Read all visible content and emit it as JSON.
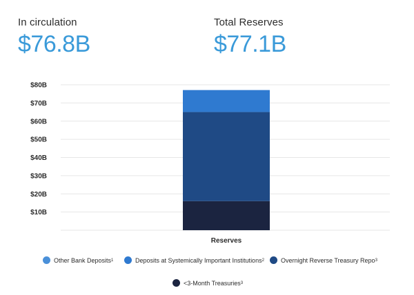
{
  "stats": {
    "circulation": {
      "label": "In circulation",
      "value": "$76.8B"
    },
    "reserves": {
      "label": "Total Reserves",
      "value": "$77.1B"
    }
  },
  "colors": {
    "stat_value": "#3a9ad9",
    "other_bank_deposits": "#4a90d9",
    "gsib_deposits": "#2f7ad0",
    "overnight_repo": "#1f4a85",
    "treasuries": "#1b2440"
  },
  "chart_data": {
    "type": "bar",
    "stacked": true,
    "categories": [
      "Reserves"
    ],
    "ylim": [
      0,
      80
    ],
    "yticks": [
      10,
      20,
      30,
      40,
      50,
      60,
      70,
      80
    ],
    "ytick_labels": [
      "$10B",
      "$20B",
      "$30B",
      "$40B",
      "$50B",
      "$60B",
      "$70B",
      "$80B"
    ],
    "grid": true,
    "legend_position": "bottom",
    "series": [
      {
        "name": "<3-Month Treasuries",
        "footnote": "3",
        "values": [
          16
        ],
        "color": "#1b2440"
      },
      {
        "name": "Overnight Reverse Treasury Repo",
        "footnote": "3",
        "values": [
          49
        ],
        "color": "#1f4a85"
      },
      {
        "name": "Deposits at Systemically Important Institutions",
        "footnote": "2",
        "values": [
          12.1
        ],
        "color": "#2f7ad0"
      },
      {
        "name": "Other Bank Deposits",
        "footnote": "1",
        "values": [
          0
        ],
        "color": "#4a90d9"
      }
    ]
  },
  "legend": [
    {
      "label": "Other Bank Deposits",
      "sup": "1",
      "color": "#4a90d9"
    },
    {
      "label": "Deposits at Systemically Important Institutions",
      "sup": "2",
      "color": "#2f7ad0"
    },
    {
      "label": "Overnight Reverse Treasury Repo",
      "sup": "3",
      "color": "#1f4a85"
    },
    {
      "label": "<3-Month Treasuries",
      "sup": "3",
      "color": "#1b2440"
    }
  ]
}
